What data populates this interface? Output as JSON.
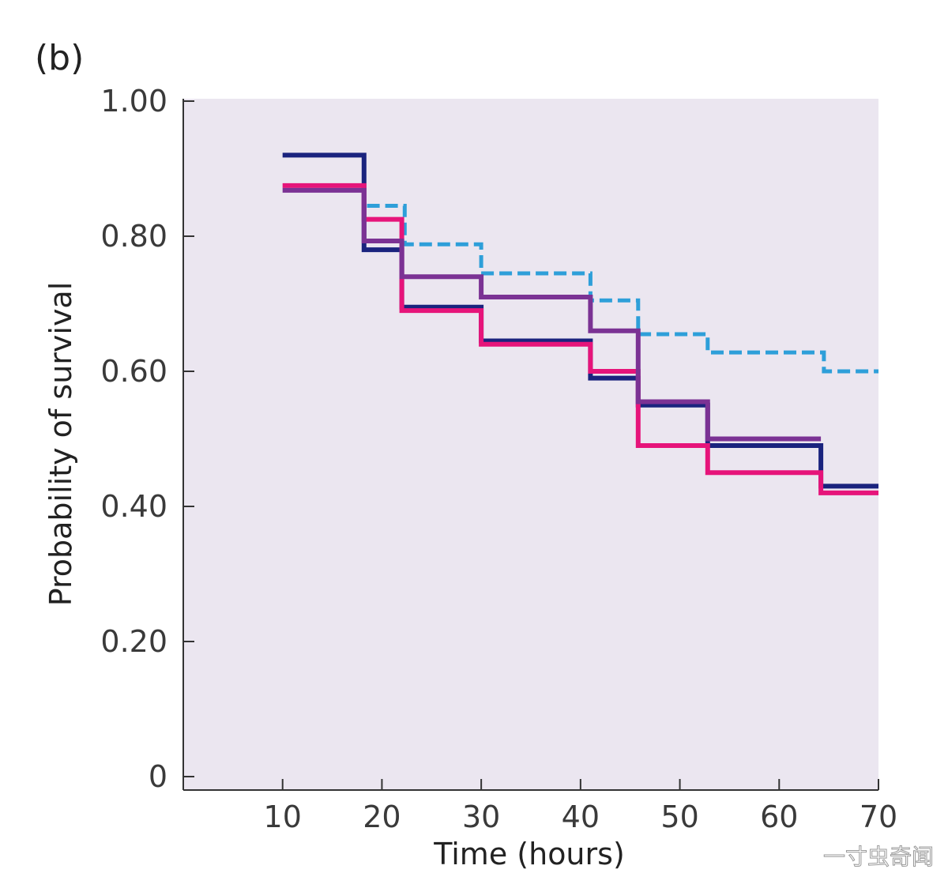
{
  "panel_label": "(b)",
  "watermark": "一寸虫奇闻",
  "chart_data": {
    "type": "line",
    "step": true,
    "title": "",
    "xlabel": "Time (hours)",
    "ylabel": "Probability of survival",
    "xlim": [
      0,
      70
    ],
    "ylim": [
      0,
      1.0
    ],
    "x_ticks": [
      10,
      20,
      30,
      40,
      50,
      60,
      70
    ],
    "x_tick_labels": [
      "10",
      "20",
      "30",
      "40",
      "50",
      "60",
      "70"
    ],
    "y_ticks": [
      0,
      0.2,
      0.4,
      0.6,
      0.8,
      1.0
    ],
    "y_tick_labels": [
      "0",
      "0.20",
      "0.40",
      "0.60",
      "0.80",
      "1.00"
    ],
    "grid": false,
    "background": "#ebe6f0",
    "series": [
      {
        "name": "navy",
        "color": "#1a237e",
        "dash": false,
        "points": [
          [
            10,
            0.92
          ],
          [
            18.2,
            0.92
          ],
          [
            18.2,
            0.78
          ],
          [
            22,
            0.78
          ],
          [
            22,
            0.695
          ],
          [
            30,
            0.695
          ],
          [
            30,
            0.645
          ],
          [
            41,
            0.645
          ],
          [
            41,
            0.59
          ],
          [
            45.8,
            0.59
          ],
          [
            45.8,
            0.55
          ],
          [
            52.8,
            0.55
          ],
          [
            52.8,
            0.49
          ],
          [
            64.2,
            0.49
          ],
          [
            64.2,
            0.43
          ],
          [
            70,
            0.43
          ]
        ]
      },
      {
        "name": "magenta",
        "color": "#e6147a",
        "dash": false,
        "points": [
          [
            10,
            0.875
          ],
          [
            18.2,
            0.875
          ],
          [
            18.2,
            0.825
          ],
          [
            22,
            0.825
          ],
          [
            22,
            0.69
          ],
          [
            30,
            0.69
          ],
          [
            30,
            0.64
          ],
          [
            41,
            0.64
          ],
          [
            41,
            0.6
          ],
          [
            45.8,
            0.6
          ],
          [
            45.8,
            0.49
          ],
          [
            52.8,
            0.49
          ],
          [
            52.8,
            0.45
          ],
          [
            64.2,
            0.45
          ],
          [
            64.2,
            0.42
          ],
          [
            70,
            0.42
          ]
        ]
      },
      {
        "name": "purple",
        "color": "#7b3294",
        "dash": false,
        "points": [
          [
            10,
            0.868
          ],
          [
            18.2,
            0.868
          ],
          [
            18.2,
            0.793
          ],
          [
            22,
            0.793
          ],
          [
            22,
            0.74
          ],
          [
            30,
            0.74
          ],
          [
            30,
            0.71
          ],
          [
            41,
            0.71
          ],
          [
            41,
            0.66
          ],
          [
            45.8,
            0.66
          ],
          [
            45.8,
            0.555
          ],
          [
            52.8,
            0.555
          ],
          [
            52.8,
            0.5
          ],
          [
            64.2,
            0.5
          ]
        ]
      },
      {
        "name": "light blue dashed",
        "color": "#2e9fd9",
        "dash": true,
        "points": [
          [
            18.5,
            0.845
          ],
          [
            22.3,
            0.845
          ],
          [
            22.3,
            0.788
          ],
          [
            30,
            0.788
          ],
          [
            30,
            0.745
          ],
          [
            41,
            0.745
          ],
          [
            41,
            0.705
          ],
          [
            45.8,
            0.705
          ],
          [
            45.8,
            0.655
          ],
          [
            52.8,
            0.655
          ],
          [
            52.8,
            0.628
          ],
          [
            64.5,
            0.628
          ],
          [
            64.5,
            0.6
          ],
          [
            70,
            0.6
          ]
        ]
      }
    ]
  }
}
